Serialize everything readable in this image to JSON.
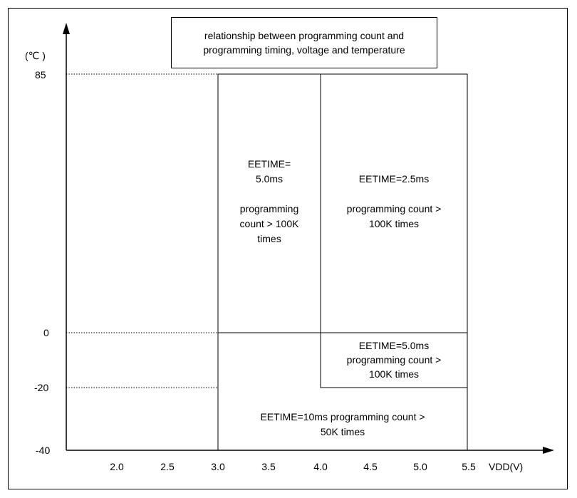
{
  "title": "relationship between programming count and programming timing, voltage and temperature",
  "axes": {
    "y_unit": "(℃ )",
    "x_unit": "VDD(V)",
    "y_ticks": [
      "85",
      "0",
      "-20",
      "-40"
    ],
    "x_ticks": [
      "2.0",
      "2.5",
      "3.0",
      "3.5",
      "4.0",
      "4.5",
      "5.0",
      "5.5"
    ]
  },
  "regions": [
    {
      "id": "r1",
      "lines": [
        "EETIME=",
        "5.0ms",
        "",
        "programming",
        "count > 100K",
        "times"
      ],
      "vdd": [
        3.0,
        4.0
      ],
      "temp": [
        0,
        85
      ]
    },
    {
      "id": "r2",
      "lines": [
        "EETIME=2.5ms",
        "",
        "programming count >",
        "100K times"
      ],
      "vdd": [
        4.0,
        5.5
      ],
      "temp": [
        0,
        85
      ]
    },
    {
      "id": "r3",
      "lines": [
        "EETIME=5.0ms",
        "programming count >",
        "100K times"
      ],
      "vdd": [
        4.0,
        5.5
      ],
      "temp": [
        -20,
        0
      ]
    },
    {
      "id": "r4",
      "lines": [
        "EETIME=10ms programming count >",
        "50K times"
      ],
      "vdd": [
        3.0,
        5.5
      ],
      "temp": [
        -40,
        0
      ]
    }
  ]
}
